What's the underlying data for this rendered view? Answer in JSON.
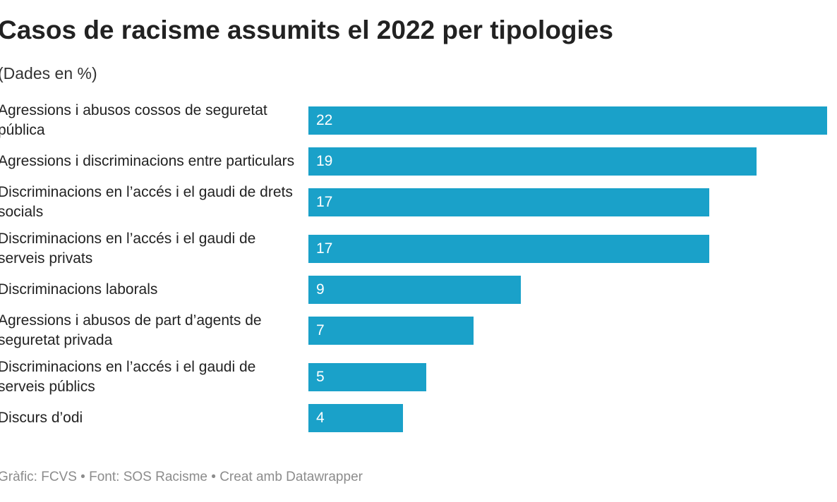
{
  "chart_data": {
    "type": "bar",
    "orientation": "horizontal",
    "title": "Casos de racisme assumits el 2022 per tipologies",
    "subtitle": "(Dades en %)",
    "categories": [
      "Agressions i abusos cossos de seguretat pública",
      "Agressions i discriminacions entre particulars",
      "Discriminacions en l’accés i el gaudi de drets socials",
      "Discriminacions en l’accés i el gaudi de serveis privats",
      "Discriminacions laborals",
      "Agressions i abusos de part d’agents de seguretat privada",
      "Discriminacions en l’accés i el gaudi de serveis públics",
      "Discurs d’odi"
    ],
    "values": [
      22,
      19,
      17,
      17,
      9,
      7,
      5,
      4
    ],
    "color": "#1aa1c9",
    "footer": "Gràfic: FCVS • Font: SOS Racisme • Creat amb Datawrapper"
  }
}
